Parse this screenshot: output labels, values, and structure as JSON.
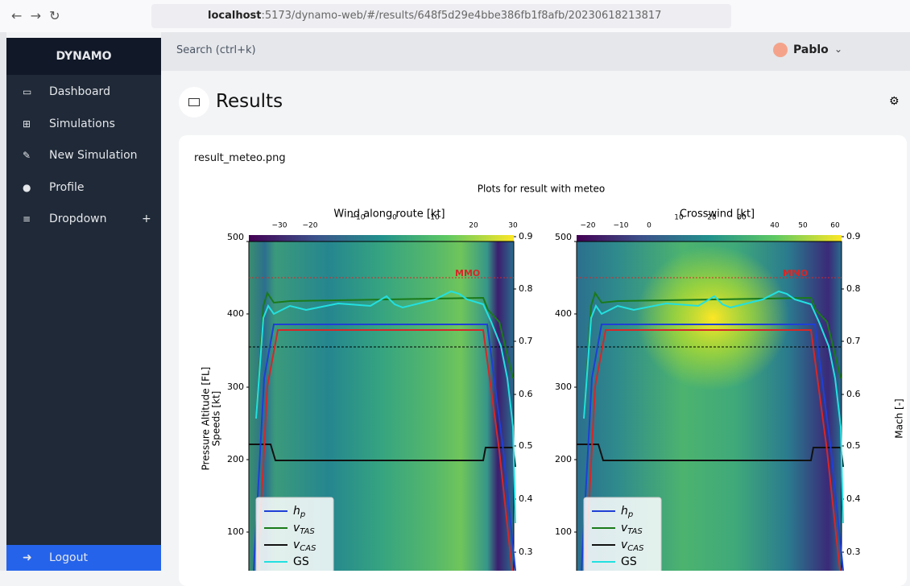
{
  "browser": {
    "url_host": "localhost",
    "url_rest": ":5173/dynamo-web/#/results/648f5d29e4bbe386fb1f8afb/20230618213817"
  },
  "sidebar": {
    "brand": "DYNAMO",
    "items": [
      "Dashboard",
      "Simulations",
      "New Simulation",
      "Profile",
      "Dropdown"
    ],
    "dropdown_toggle": "+",
    "logout": "Logout"
  },
  "topbar": {
    "search": "Search (ctrl+k)",
    "user": "Pablo"
  },
  "page": {
    "title": "Results",
    "file_name": "result_meteo.png"
  },
  "figure": {
    "title": "Plots for result with meteo",
    "y_label_lines": [
      "Pressure Altitude [FL]",
      "Speeds [kt]"
    ],
    "y2_label": "Mach [-]",
    "annotation": "MMO",
    "left_ticks": [
      "500",
      "400",
      "300",
      "200",
      "100"
    ],
    "right_ticks": [
      "0.9",
      "0.8",
      "0.7",
      "0.6",
      "0.5",
      "0.4",
      "0.3"
    ],
    "panels": [
      {
        "title": "Wind along route [kt]",
        "top_ticks": [
          "−30",
          "−20",
          "−10",
          "0",
          "10",
          "20",
          "30"
        ]
      },
      {
        "title": "Crosswind [kt]",
        "top_ticks": [
          "−20",
          "−10",
          "0",
          "10",
          "20",
          "30",
          "40",
          "50",
          "60"
        ]
      }
    ],
    "legend": [
      {
        "main": "h",
        "sub": "p"
      },
      {
        "main": "v",
        "sub": "TAS"
      },
      {
        "main": "v",
        "sub": "CAS"
      },
      {
        "main": "GS",
        "sub": null
      }
    ]
  }
}
